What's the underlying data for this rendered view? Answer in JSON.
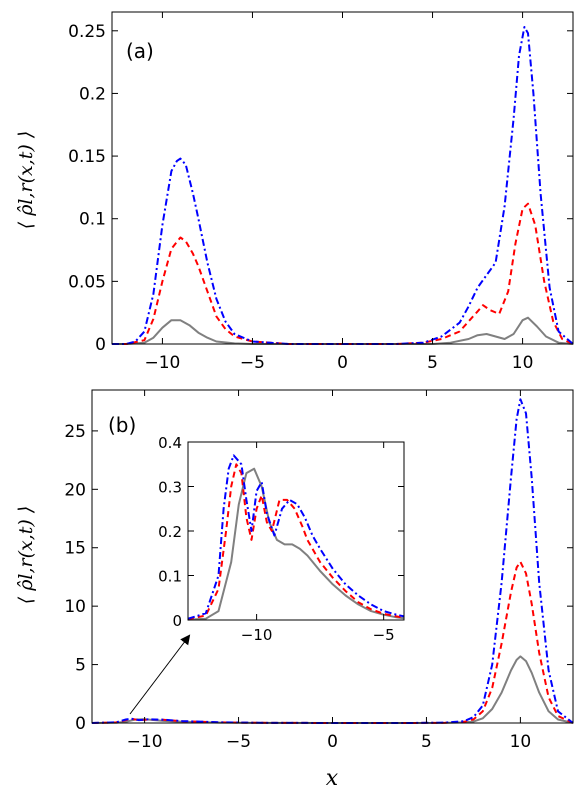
{
  "chart_data": [
    {
      "panel": "a",
      "type": "line",
      "panel_label": "(a)",
      "xlabel": "",
      "ylabel": "⟨ ρ̂l,r(x,t) ⟩",
      "xlim": [
        -12.8,
        12.8
      ],
      "ylim": [
        0,
        0.265
      ],
      "xticks": [
        -10,
        -5,
        0,
        5,
        10
      ],
      "xtick_labels": [
        "−10",
        "−5",
        "0",
        "5",
        "10"
      ],
      "yticks": [
        0,
        0.05,
        0.1,
        0.15,
        0.2,
        0.25
      ],
      "ytick_labels": [
        "0",
        "0.05",
        "0.1",
        "0.15",
        "0.2",
        "0.25"
      ],
      "grid": false,
      "series": [
        {
          "style": "solid",
          "color": "#808080",
          "x": [
            -12.8,
            -12,
            -11,
            -10.5,
            -10,
            -9.5,
            -9,
            -8.5,
            -8,
            -7.5,
            -7,
            -6,
            -5,
            -3,
            0,
            3,
            5,
            6,
            7,
            7.5,
            8,
            8.5,
            9,
            9.5,
            10,
            10.3,
            10.8,
            11.3,
            12,
            12.8
          ],
          "y": [
            0,
            0,
            0.001,
            0.005,
            0.013,
            0.019,
            0.019,
            0.015,
            0.009,
            0.005,
            0.002,
            0.0005,
            0,
            0,
            0,
            0,
            0,
            0.001,
            0.004,
            0.007,
            0.008,
            0.006,
            0.004,
            0.008,
            0.019,
            0.021,
            0.014,
            0.006,
            0.001,
            0
          ]
        },
        {
          "style": "dashed",
          "color": "#ff0000",
          "x": [
            -12.8,
            -12,
            -11,
            -10.5,
            -10,
            -9.5,
            -9,
            -8.7,
            -8.3,
            -8,
            -7.5,
            -7,
            -6.5,
            -6,
            -5,
            -3,
            0,
            3,
            4.5,
            5.5,
            6.5,
            7,
            7.5,
            7.8,
            8.2,
            8.7,
            9.2,
            9.6,
            10,
            10.3,
            10.7,
            11.2,
            11.7,
            12.2,
            12.8
          ],
          "y": [
            0,
            0,
            0.003,
            0.02,
            0.05,
            0.076,
            0.085,
            0.082,
            0.072,
            0.062,
            0.042,
            0.022,
            0.012,
            0.006,
            0.002,
            0,
            0,
            0,
            0.001,
            0.004,
            0.01,
            0.018,
            0.026,
            0.031,
            0.027,
            0.024,
            0.042,
            0.08,
            0.108,
            0.112,
            0.095,
            0.05,
            0.018,
            0.004,
            0
          ]
        },
        {
          "style": "dashdot",
          "color": "#0000ff",
          "x": [
            -12.8,
            -12,
            -11.5,
            -11,
            -10.5,
            -10,
            -9.5,
            -9.2,
            -9,
            -8.7,
            -8.3,
            -8,
            -7.5,
            -7,
            -6.5,
            -6,
            -5,
            -3,
            0,
            3,
            4.5,
            5.5,
            6.5,
            7,
            7.5,
            8,
            8.5,
            9,
            9.5,
            9.8,
            10.1,
            10.3,
            10.6,
            11,
            11.5,
            12,
            12.8
          ],
          "y": [
            0,
            0,
            0.002,
            0.01,
            0.04,
            0.095,
            0.138,
            0.146,
            0.148,
            0.143,
            0.12,
            0.1,
            0.065,
            0.036,
            0.018,
            0.008,
            0.002,
            0,
            0,
            0,
            0.001,
            0.006,
            0.017,
            0.03,
            0.045,
            0.055,
            0.065,
            0.11,
            0.18,
            0.23,
            0.253,
            0.248,
            0.2,
            0.12,
            0.045,
            0.01,
            0
          ]
        }
      ]
    },
    {
      "panel": "b",
      "type": "line",
      "panel_label": "(b)",
      "xlabel": "x",
      "ylabel": "⟨ ρ̂l,r(x,t) ⟩",
      "xlim": [
        -12.8,
        12.8
      ],
      "ylim": [
        0,
        28.5
      ],
      "xticks": [
        -10,
        -5,
        0,
        5,
        10
      ],
      "xtick_labels": [
        "−10",
        "−5",
        "0",
        "5",
        "10"
      ],
      "yticks": [
        0,
        5,
        10,
        15,
        20,
        25
      ],
      "ytick_labels": [
        "0",
        "5",
        "10",
        "15",
        "20",
        "25"
      ],
      "grid": false,
      "series": [
        {
          "style": "solid",
          "color": "#808080",
          "x": [
            -12.8,
            -11.5,
            -11,
            -10.5,
            -10,
            -9,
            -8,
            -6,
            -4,
            0,
            4,
            6,
            7,
            7.5,
            8,
            8.5,
            9,
            9.5,
            9.8,
            10,
            10.3,
            10.6,
            11,
            11.5,
            12,
            12.8
          ],
          "y": [
            0,
            0.02,
            0.1,
            0.3,
            0.32,
            0.18,
            0.1,
            0.03,
            0.01,
            0,
            0,
            0.01,
            0.05,
            0.12,
            0.4,
            1.2,
            2.6,
            4.5,
            5.4,
            5.7,
            5.3,
            4.3,
            2.6,
            1.0,
            0.3,
            0
          ]
        },
        {
          "style": "dashed",
          "color": "#ff0000",
          "x": [
            -12.8,
            -11.5,
            -11,
            -10.7,
            -10.3,
            -9.8,
            -9,
            -8,
            -6,
            -4,
            0,
            4,
            6,
            7,
            7.5,
            8,
            8.5,
            9,
            9.5,
            9.8,
            10,
            10.3,
            10.6,
            11,
            11.5,
            12,
            12.8
          ],
          "y": [
            0,
            0.05,
            0.25,
            0.36,
            0.24,
            0.3,
            0.27,
            0.15,
            0.05,
            0.015,
            0,
            0,
            0.02,
            0.1,
            0.3,
            1.0,
            3.0,
            6.8,
            11.2,
            13.3,
            13.8,
            12.8,
            10.2,
            6.0,
            2.2,
            0.6,
            0
          ]
        },
        {
          "style": "dashdot",
          "color": "#0000ff",
          "x": [
            -12.8,
            -11.5,
            -11,
            -10.7,
            -10.3,
            -9.8,
            -9,
            -8,
            -6,
            -4,
            0,
            4,
            6,
            7,
            7.5,
            8,
            8.5,
            9,
            9.5,
            9.8,
            10,
            10.3,
            10.6,
            11,
            11.5,
            12,
            12.8
          ],
          "y": [
            0,
            0.06,
            0.3,
            0.37,
            0.25,
            0.32,
            0.28,
            0.16,
            0.06,
            0.02,
            0,
            0,
            0.03,
            0.15,
            0.5,
            1.5,
            5.0,
            12.0,
            21.0,
            26.0,
            27.7,
            26.5,
            21.0,
            12.0,
            4.5,
            1.0,
            0
          ]
        }
      ],
      "inset": {
        "xlim": [
          -12.7,
          -4.2
        ],
        "ylim": [
          0,
          0.4
        ],
        "xticks": [
          -10,
          -5
        ],
        "xtick_labels": [
          "−10",
          "−5"
        ],
        "yticks": [
          0,
          0.1,
          0.2,
          0.3,
          0.4
        ],
        "ytick_labels": [
          "0",
          "0.1",
          "0.2",
          "0.3",
          "0.4"
        ],
        "series": [
          {
            "style": "solid",
            "color": "#808080",
            "x": [
              -12.7,
              -12,
              -11.5,
              -11,
              -10.7,
              -10.4,
              -10.1,
              -9.8,
              -9.5,
              -9.2,
              -8.9,
              -8.6,
              -8.3,
              -8,
              -7.5,
              -7,
              -6.5,
              -6,
              -5.5,
              -5,
              -4.5,
              -4.2
            ],
            "y": [
              0.001,
              0.003,
              0.02,
              0.13,
              0.26,
              0.33,
              0.34,
              0.3,
              0.22,
              0.18,
              0.17,
              0.17,
              0.16,
              0.145,
              0.11,
              0.08,
              0.055,
              0.035,
              0.02,
              0.012,
              0.006,
              0.004
            ]
          },
          {
            "style": "dashed",
            "color": "#ff0000",
            "x": [
              -12.7,
              -12,
              -11.5,
              -11.2,
              -11,
              -10.8,
              -10.6,
              -10.4,
              -10.2,
              -10,
              -9.8,
              -9.6,
              -9.4,
              -9.1,
              -8.8,
              -8.5,
              -8.2,
              -8,
              -7.5,
              -7,
              -6.5,
              -6,
              -5.5,
              -5,
              -4.5,
              -4.2
            ],
            "y": [
              0.002,
              0.01,
              0.07,
              0.2,
              0.3,
              0.35,
              0.33,
              0.23,
              0.18,
              0.25,
              0.28,
              0.22,
              0.2,
              0.27,
              0.27,
              0.25,
              0.21,
              0.18,
              0.13,
              0.095,
              0.065,
              0.04,
              0.024,
              0.014,
              0.008,
              0.005
            ]
          },
          {
            "style": "dashdot",
            "color": "#0000ff",
            "x": [
              -12.7,
              -12,
              -11.5,
              -11.3,
              -11.1,
              -10.9,
              -10.6,
              -10.4,
              -10.2,
              -10,
              -9.8,
              -9.6,
              -9.3,
              -9,
              -8.7,
              -8.4,
              -8.1,
              -7.8,
              -7.5,
              -7,
              -6.5,
              -6,
              -5.5,
              -5,
              -4.5,
              -4.2
            ],
            "y": [
              0.003,
              0.015,
              0.1,
              0.25,
              0.34,
              0.37,
              0.35,
              0.27,
              0.2,
              0.29,
              0.31,
              0.24,
              0.19,
              0.25,
              0.27,
              0.26,
              0.23,
              0.19,
              0.16,
              0.115,
              0.08,
              0.055,
              0.035,
              0.02,
              0.012,
              0.008
            ]
          }
        ]
      }
    }
  ]
}
